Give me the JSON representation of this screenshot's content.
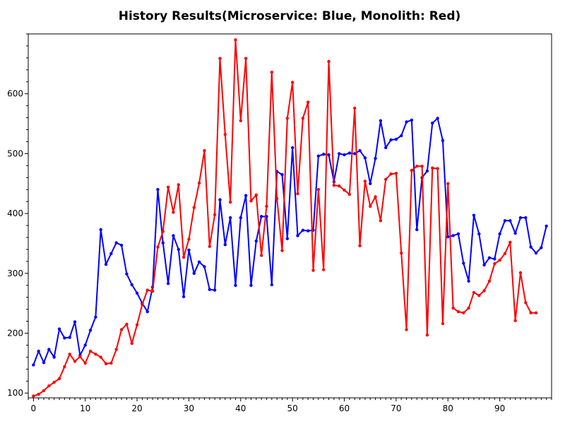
{
  "chart_data": {
    "type": "line",
    "title": "History Results(Microservice: Blue, Monolith: Red)",
    "xlabel": "",
    "ylabel": "",
    "xlim": [
      -1,
      100
    ],
    "ylim": [
      92,
      700
    ],
    "xticks": [
      0,
      10,
      20,
      30,
      40,
      50,
      60,
      70,
      80,
      90
    ],
    "yticks": [
      100,
      200,
      300,
      400,
      500,
      600
    ],
    "grid": false,
    "series": [
      {
        "color": "#0000ff",
        "x": [
          0,
          1,
          2,
          3,
          4,
          5,
          6,
          7,
          8,
          9,
          10,
          11,
          12,
          13,
          14,
          15,
          16,
          17,
          18,
          19,
          20,
          21,
          22,
          23,
          24,
          25,
          26,
          27,
          28,
          29,
          30,
          31,
          32,
          33,
          34,
          35,
          36,
          37,
          38,
          39,
          40,
          41,
          42,
          43,
          44,
          45,
          46,
          47,
          48,
          49,
          50,
          51,
          52,
          53,
          54,
          55,
          56,
          57,
          58,
          59,
          60,
          61,
          62,
          63,
          64,
          65,
          66,
          67,
          68,
          69,
          70,
          71,
          72,
          73,
          74,
          75,
          76,
          77,
          78,
          79,
          80,
          81,
          82,
          83,
          84,
          85,
          86,
          87,
          88,
          89,
          90,
          91,
          92,
          93,
          94,
          95,
          96,
          97,
          98,
          99
        ],
        "y": [
          147,
          170,
          151,
          173,
          160,
          207,
          192,
          193,
          219,
          163,
          180,
          205,
          227,
          373,
          315,
          333,
          351,
          347,
          299,
          281,
          267,
          250,
          236,
          277,
          440,
          351,
          283,
          363,
          340,
          261,
          339,
          300,
          319,
          311,
          273,
          272,
          423,
          348,
          393,
          280,
          393,
          430,
          280,
          354,
          395,
          395,
          281,
          470,
          465,
          358,
          510,
          363,
          372,
          371,
          372,
          496,
          499,
          498,
          453,
          500,
          498,
          501,
          500,
          505,
          493,
          450,
          492,
          555,
          510,
          523,
          524,
          530,
          553,
          556,
          373,
          460,
          471,
          551,
          559,
          522,
          361,
          363,
          366,
          317,
          287,
          397,
          366,
          314,
          326,
          324,
          366,
          388,
          388,
          367,
          393,
          393,
          344,
          334,
          343,
          379
        ]
      },
      {
        "color": "#ff0000",
        "x": [
          0,
          1,
          2,
          3,
          4,
          5,
          6,
          7,
          8,
          9,
          10,
          11,
          12,
          13,
          14,
          15,
          16,
          17,
          18,
          19,
          20,
          21,
          22,
          23,
          24,
          25,
          26,
          27,
          28,
          29,
          30,
          31,
          32,
          33,
          34,
          35,
          36,
          37,
          38,
          39,
          40,
          41,
          42,
          43,
          44,
          45,
          46,
          47,
          48,
          49,
          50,
          51,
          52,
          53,
          54,
          55,
          56,
          57,
          58,
          59,
          60,
          61,
          62,
          63,
          64,
          65,
          66,
          67,
          68,
          69,
          70,
          71,
          72,
          73,
          74,
          75,
          76,
          77,
          78,
          79,
          80,
          81,
          82,
          83,
          84,
          85,
          86,
          87,
          88,
          89,
          90,
          91,
          92,
          93,
          94,
          95,
          96,
          97
        ],
        "y": [
          95,
          98,
          104,
          112,
          118,
          124,
          144,
          165,
          153,
          161,
          150,
          170,
          165,
          160,
          149,
          150,
          173,
          206,
          215,
          183,
          214,
          248,
          272,
          270,
          344,
          370,
          444,
          402,
          448,
          327,
          357,
          410,
          451,
          505,
          345,
          398,
          659,
          532,
          419,
          690,
          555,
          659,
          421,
          431,
          330,
          412,
          636,
          425,
          338,
          559,
          619,
          433,
          559,
          586,
          305,
          440,
          306,
          654,
          447,
          446,
          439,
          432,
          576,
          346,
          454,
          412,
          428,
          388,
          457,
          466,
          467,
          334,
          206,
          472,
          479,
          479,
          197,
          476,
          475,
          216,
          450,
          242,
          236,
          234,
          242,
          268,
          263,
          271,
          287,
          316,
          322,
          333,
          352,
          221,
          301,
          251,
          234,
          234
        ]
      }
    ]
  }
}
